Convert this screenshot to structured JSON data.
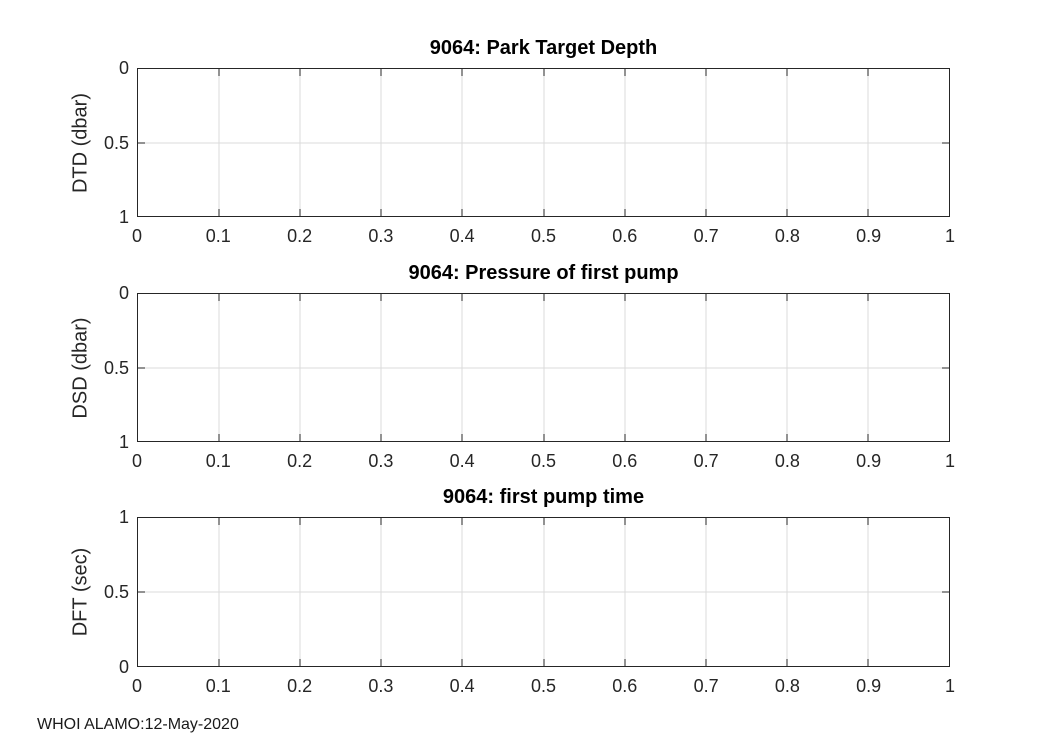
{
  "figure": {
    "background_color": "#ffffff",
    "axis_color": "#262626",
    "grid_color": "#dbdbdb",
    "title_color": "#000000"
  },
  "footer": {
    "text": "WHOI ALAMO:12-May-2020"
  },
  "chart_data": [
    {
      "type": "line",
      "title": "9064: Park Target Depth",
      "xlabel": "",
      "ylabel": "DTD (dbar)",
      "xlim": [
        0,
        1
      ],
      "ylim": [
        0,
        1
      ],
      "y_axis_direction": "reverse",
      "grid": true,
      "xticks": [
        0,
        0.1,
        0.2,
        0.3,
        0.4,
        0.5,
        0.6,
        0.7,
        0.8,
        0.9,
        1
      ],
      "xtick_labels": [
        "0",
        "0.1",
        "0.2",
        "0.3",
        "0.4",
        "0.5",
        "0.6",
        "0.7",
        "0.8",
        "0.9",
        "1"
      ],
      "yticks": [
        0,
        0.5,
        1
      ],
      "ytick_display_top_to_bottom": [
        "0",
        "0.5",
        "1"
      ],
      "series": []
    },
    {
      "type": "line",
      "title": "9064: Pressure of first pump",
      "xlabel": "",
      "ylabel": "DSD (dbar)",
      "xlim": [
        0,
        1
      ],
      "ylim": [
        0,
        1
      ],
      "y_axis_direction": "reverse",
      "grid": true,
      "xticks": [
        0,
        0.1,
        0.2,
        0.3,
        0.4,
        0.5,
        0.6,
        0.7,
        0.8,
        0.9,
        1
      ],
      "xtick_labels": [
        "0",
        "0.1",
        "0.2",
        "0.3",
        "0.4",
        "0.5",
        "0.6",
        "0.7",
        "0.8",
        "0.9",
        "1"
      ],
      "yticks": [
        0,
        0.5,
        1
      ],
      "ytick_display_top_to_bottom": [
        "0",
        "0.5",
        "1"
      ],
      "series": []
    },
    {
      "type": "line",
      "title": "9064: first pump time",
      "xlabel": "",
      "ylabel": "DFT (sec)",
      "xlim": [
        0,
        1
      ],
      "ylim": [
        0,
        1
      ],
      "y_axis_direction": "normal",
      "grid": true,
      "xticks": [
        0,
        0.1,
        0.2,
        0.3,
        0.4,
        0.5,
        0.6,
        0.7,
        0.8,
        0.9,
        1
      ],
      "xtick_labels": [
        "0",
        "0.1",
        "0.2",
        "0.3",
        "0.4",
        "0.5",
        "0.6",
        "0.7",
        "0.8",
        "0.9",
        "1"
      ],
      "yticks": [
        0,
        0.5,
        1
      ],
      "ytick_display_top_to_bottom": [
        "1",
        "0.5",
        "0"
      ],
      "series": []
    }
  ]
}
